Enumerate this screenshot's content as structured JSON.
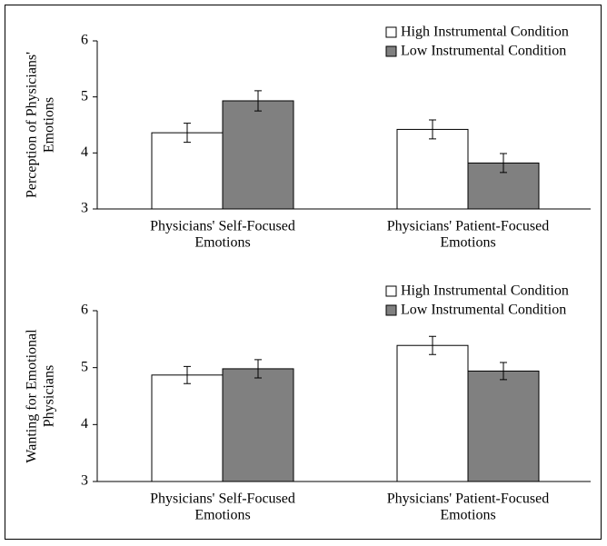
{
  "chart_data": [
    {
      "type": "bar",
      "ylabel": [
        "Perception of Physicians'",
        "Emotions"
      ],
      "categories": [
        [
          "Physicians' Self-Focused",
          "Emotions"
        ],
        [
          "Physicians' Patient-Focused",
          "Emotions"
        ]
      ],
      "series": [
        {
          "name": "High Instrumental Condition",
          "color": "#ffffff",
          "values": [
            4.36,
            4.42
          ],
          "errors": [
            0.17,
            0.17
          ]
        },
        {
          "name": "Low Instrumental Condition",
          "color": "#808080",
          "values": [
            4.93,
            3.82
          ],
          "errors": [
            0.18,
            0.17
          ]
        }
      ],
      "ylim": [
        3,
        6
      ],
      "yticks": [
        3,
        4,
        5,
        6
      ],
      "grid": false,
      "legend": "top-right"
    },
    {
      "type": "bar",
      "ylabel": [
        "Wanting for Emotional",
        "Physicians"
      ],
      "categories": [
        [
          "Physicians' Self-Focused",
          "Emotions"
        ],
        [
          "Physicians' Patient-Focused",
          "Emotions"
        ]
      ],
      "series": [
        {
          "name": "High Instrumental Condition",
          "color": "#ffffff",
          "values": [
            4.87,
            5.39
          ],
          "errors": [
            0.15,
            0.16
          ]
        },
        {
          "name": "Low Instrumental Condition",
          "color": "#808080",
          "values": [
            4.98,
            4.94
          ],
          "errors": [
            0.16,
            0.15
          ]
        }
      ],
      "ylim": [
        3,
        6
      ],
      "yticks": [
        3,
        4,
        5,
        6
      ],
      "grid": false,
      "legend": "top-right"
    }
  ]
}
